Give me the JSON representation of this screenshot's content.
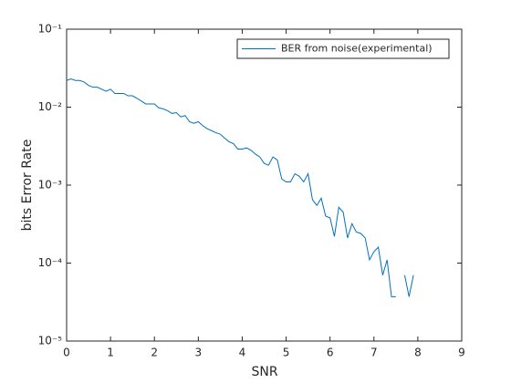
{
  "chart_data": {
    "type": "line",
    "xlabel": "SNR",
    "ylabel": "bits Error Rate",
    "log_y": true,
    "legend_position": "upper right",
    "grid": false,
    "x": [
      0,
      0.1,
      0.2,
      0.3,
      0.4,
      0.5,
      0.6,
      0.7,
      0.8,
      0.9,
      1,
      1.1,
      1.2,
      1.3,
      1.4,
      1.5,
      1.6,
      1.7,
      1.8,
      1.9,
      2,
      2.1,
      2.2,
      2.3,
      2.4,
      2.5,
      2.6,
      2.7,
      2.8,
      2.9,
      3,
      3.1,
      3.2,
      3.3,
      3.4,
      3.5,
      3.6,
      3.7,
      3.8,
      3.9,
      4,
      4.1,
      4.2,
      4.3,
      4.4,
      4.5,
      4.6,
      4.7,
      4.8,
      4.9,
      5,
      5.1,
      5.2,
      5.3,
      5.4,
      5.5,
      5.6,
      5.7,
      5.8,
      5.9,
      6,
      6.1,
      6.2,
      6.3,
      6.4,
      6.5,
      6.6,
      6.7,
      6.8,
      6.9,
      7,
      7.1,
      7.2,
      7.3,
      7.4,
      7.5,
      7.6,
      7.7,
      7.8,
      7.9
    ],
    "series": [
      {
        "name": "BER from noise(experimental)",
        "color": "#0072bd",
        "values": [
          0.022,
          0.023,
          0.022,
          0.022,
          0.021,
          0.019,
          0.018,
          0.018,
          0.017,
          0.016,
          0.017,
          0.015,
          0.015,
          0.015,
          0.014,
          0.014,
          0.013,
          0.012,
          0.011,
          0.011,
          0.011,
          0.0098,
          0.0095,
          0.009,
          0.0083,
          0.0085,
          0.0075,
          0.0078,
          0.0065,
          0.0062,
          0.0065,
          0.0058,
          0.0053,
          0.005,
          0.0047,
          0.0045,
          0.004,
          0.0036,
          0.0034,
          0.0029,
          0.0029,
          0.003,
          0.0028,
          0.0025,
          0.0023,
          0.0019,
          0.0018,
          0.0023,
          0.0021,
          0.0012,
          0.0011,
          0.0011,
          0.0014,
          0.0013,
          0.0011,
          0.0014,
          0.00065,
          0.00055,
          0.00068,
          0.0004,
          0.00038,
          0.00022,
          0.00052,
          0.00045,
          0.00021,
          0.00032,
          0.00025,
          0.00024,
          0.00021,
          0.00011,
          0.00014,
          0.00016,
          7e-05,
          0.00011,
          3.7e-05,
          3.7e-05,
          null,
          7e-05,
          3.7e-05,
          7e-05
        ]
      }
    ],
    "xlim": [
      0,
      9
    ],
    "xticks": [
      0,
      1,
      2,
      3,
      4,
      5,
      6,
      7,
      8,
      9
    ],
    "ylim": [
      1e-05,
      0.1
    ],
    "yticks": [
      {
        "value": 1e-05,
        "label": "10⁻⁵"
      },
      {
        "value": 0.0001,
        "label": "10⁻⁴"
      },
      {
        "value": 0.001,
        "label": "10⁻³"
      },
      {
        "value": 0.01,
        "label": "10⁻²"
      },
      {
        "value": 0.1,
        "label": "10⁻¹"
      }
    ]
  }
}
